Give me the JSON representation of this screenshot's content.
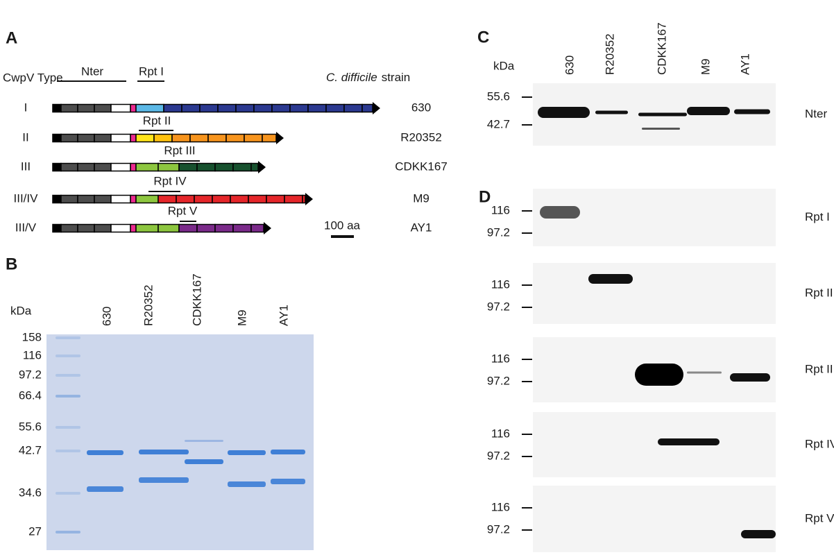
{
  "panel_a": {
    "label": "A",
    "type_header": "CwpV Type",
    "strain_header_italic": "C. difficile",
    "strain_header": "strain",
    "nter": "Nter",
    "constructs": [
      {
        "type": "I",
        "strain": "630",
        "repeat": "Rpt I"
      },
      {
        "type": "II",
        "strain": "R20352",
        "repeat": "Rpt II"
      },
      {
        "type": "III",
        "strain": "CDKK167",
        "repeat": "Rpt III"
      },
      {
        "type": "III/IV",
        "strain": "M9",
        "repeat": "Rpt IV"
      },
      {
        "type": "III/V",
        "strain": "AY1",
        "repeat": "Rpt V"
      }
    ],
    "scale": "100 aa"
  },
  "panel_b": {
    "label": "B",
    "unit": "kDa",
    "markers": [
      "158",
      "116",
      "97.2",
      "66.4",
      "55.6",
      "42.7",
      "34.6",
      "27"
    ],
    "lanes": [
      "630",
      "R20352",
      "CDKK167",
      "M9",
      "AY1"
    ]
  },
  "panel_c": {
    "label": "C",
    "unit": "kDa",
    "markers": [
      "55.6",
      "42.7"
    ],
    "lanes": [
      "630",
      "R20352",
      "CDKK167",
      "M9",
      "AY1"
    ],
    "blot": "Nter"
  },
  "panel_d": {
    "label": "D",
    "blots": [
      {
        "name": "Rpt I",
        "markers": [
          "116",
          "97.2"
        ]
      },
      {
        "name": "Rpt II",
        "markers": [
          "116",
          "97.2"
        ]
      },
      {
        "name": "Rpt III",
        "markers": [
          "116",
          "97.2"
        ]
      },
      {
        "name": "Rpt IV",
        "markers": [
          "116",
          "97.2"
        ]
      },
      {
        "name": "Rpt V",
        "markers": [
          "116",
          "97.2"
        ]
      }
    ]
  }
}
